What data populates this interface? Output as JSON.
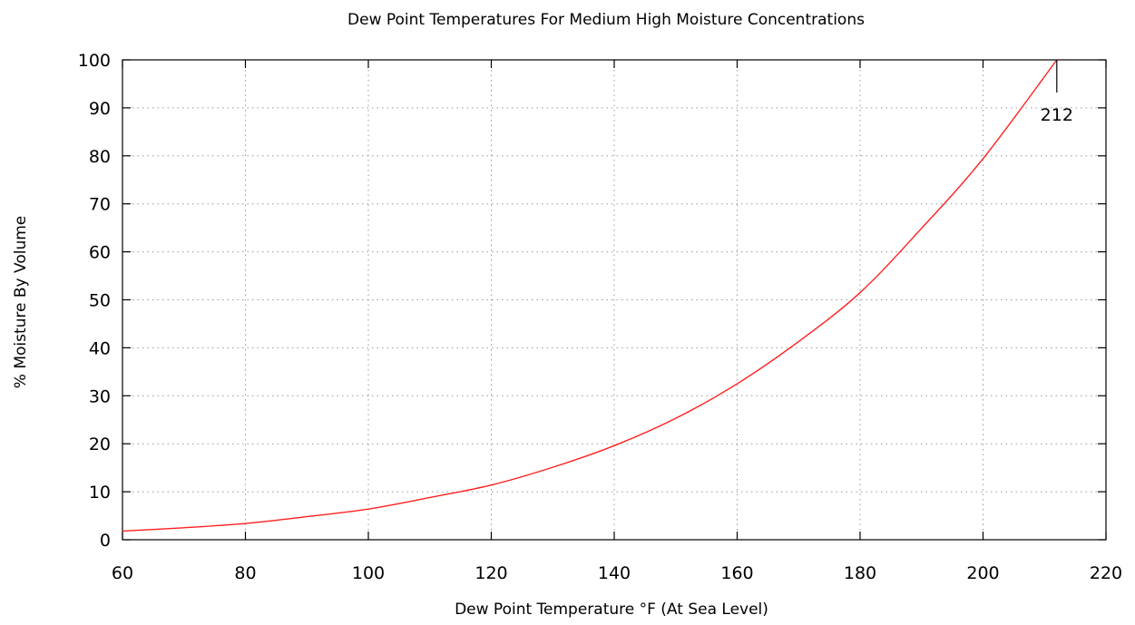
{
  "chart_data": {
    "type": "line",
    "title": "Dew Point Temperatures For Medium  High Moisture Concentrations",
    "xlabel": "Dew Point Temperature °F (At Sea Level)",
    "ylabel": "% Moisture By Volume",
    "xlim": [
      60,
      220
    ],
    "ylim": [
      0,
      100
    ],
    "xticks": [
      60,
      80,
      100,
      120,
      140,
      160,
      180,
      200,
      220
    ],
    "yticks": [
      0,
      10,
      20,
      30,
      40,
      50,
      60,
      70,
      80,
      90,
      100
    ],
    "grid": true,
    "series": [
      {
        "color": "#ff2020",
        "x": [
          60,
          70,
          80,
          90,
          100,
          110,
          120,
          130,
          140,
          150,
          160,
          170,
          180,
          190,
          200,
          212
        ],
        "y": [
          1.8,
          2.5,
          3.4,
          4.8,
          6.4,
          8.8,
          11.4,
          15.1,
          19.6,
          25.3,
          32.5,
          41.3,
          51.5,
          64.9,
          79.4,
          100
        ]
      }
    ],
    "annotations": [
      {
        "text": "212",
        "x": 212,
        "y": 100
      }
    ]
  }
}
